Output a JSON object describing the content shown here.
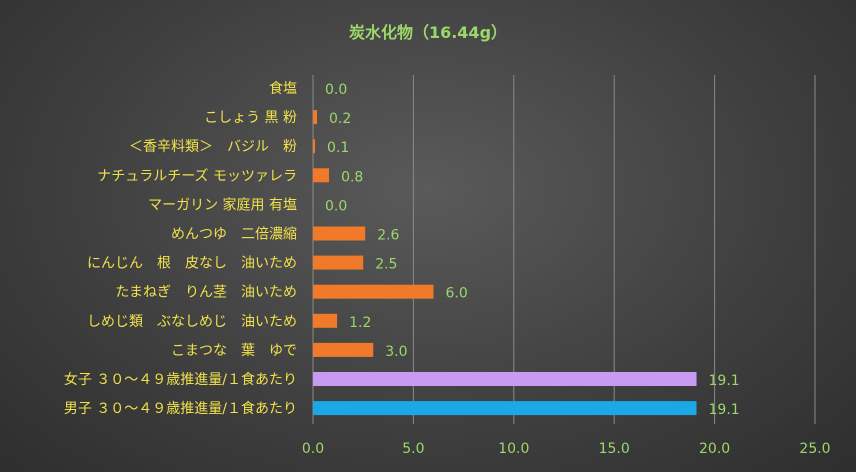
{
  "chart_data": {
    "type": "bar",
    "orientation": "horizontal",
    "title": "炭水化物（16.44g）",
    "categories": [
      "食塩",
      "こしょう 黒 粉",
      "＜香辛料類＞　バジル　粉",
      "ナチュラルチーズ モッツァレラ",
      "マーガリン 家庭用 有塩",
      "めんつゆ　二倍濃縮",
      "にんじん　根　皮なし　油いため",
      "たまねぎ　りん茎　油いため",
      "しめじ類　ぶなしめじ　油いため",
      "こまつな　葉　ゆで",
      "女子 ３０～４９歳推進量/１食あたり",
      "男子 ３０～４９歳推進量/１食あたり"
    ],
    "values": [
      0.0,
      0.2,
      0.1,
      0.8,
      0.0,
      2.6,
      2.5,
      6.0,
      1.2,
      3.0,
      19.1,
      19.1
    ],
    "value_labels": [
      "0.0",
      "0.2",
      "0.1",
      "0.8",
      "0.0",
      "2.6",
      "2.5",
      "6.0",
      "1.2",
      "3.0",
      "19.1",
      "19.1"
    ],
    "bar_colors": [
      "#f07a2a",
      "#f07a2a",
      "#f07a2a",
      "#f07a2a",
      "#f07a2a",
      "#f07a2a",
      "#f07a2a",
      "#f07a2a",
      "#f07a2a",
      "#f07a2a",
      "#c79bf2",
      "#1aa9e6"
    ],
    "xlim": [
      0,
      25
    ],
    "xticks": [
      "0.0",
      "5.0",
      "10.0",
      "15.0",
      "20.0",
      "25.0"
    ],
    "grid": true,
    "colors": {
      "title": "#9bd86a",
      "category_labels": "#f0e24a",
      "data_labels": "#9bd86a",
      "tick_labels": "#9bd86a",
      "gridlines": "#8a8a8a"
    }
  }
}
